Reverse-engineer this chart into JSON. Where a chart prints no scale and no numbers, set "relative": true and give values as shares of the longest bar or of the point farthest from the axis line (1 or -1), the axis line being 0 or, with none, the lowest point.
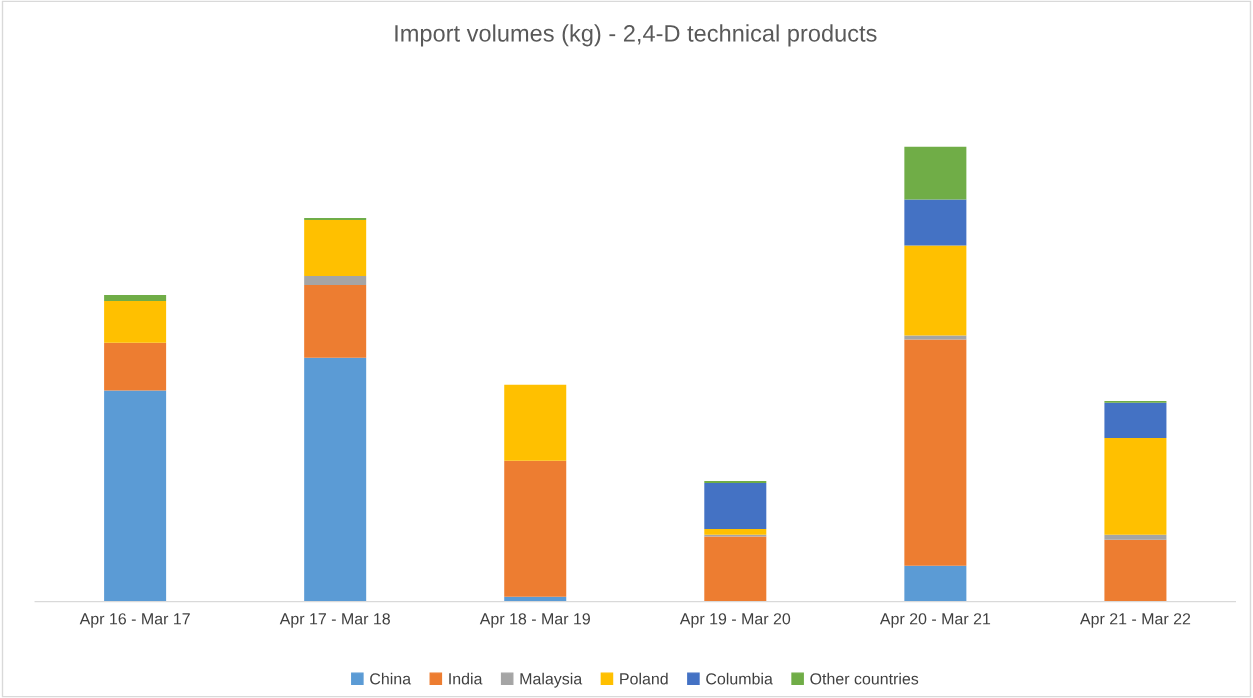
{
  "chart_data": {
    "type": "bar",
    "title": "Import volumes (kg) - 2,4-D technical products",
    "categories": [
      "Apr 16 - Mar 17",
      "Apr 17 - Mar 18",
      "Apr 18 - Mar 19",
      "Apr 19 - Mar 20",
      "Apr 20 - Mar 21",
      "Apr 21 - Mar 22"
    ],
    "stacked": true,
    "relative": true,
    "legend": "bottom",
    "series": [
      {
        "name": "China",
        "color": "#5b9bd5",
        "values": [
          0.464,
          0.536,
          0.011,
          0,
          0.079,
          0
        ]
      },
      {
        "name": "India",
        "color": "#ed7d31",
        "values": [
          0.105,
          0.16,
          0.299,
          0.143,
          0.497,
          0.136
        ]
      },
      {
        "name": "Malaysia",
        "color": "#a5a5a5",
        "values": [
          0,
          0.02,
          0,
          0.004,
          0.009,
          0.011
        ]
      },
      {
        "name": "Poland",
        "color": "#ffc000",
        "values": [
          0.092,
          0.123,
          0.167,
          0.013,
          0.198,
          0.213
        ]
      },
      {
        "name": "Columbia",
        "color": "#4472c4",
        "values": [
          0,
          0,
          0,
          0.101,
          0.101,
          0.077
        ]
      },
      {
        "name": "Other countries",
        "color": "#70ad47",
        "values": [
          0.013,
          0.004,
          0,
          0.004,
          0.116,
          0.004
        ]
      }
    ]
  }
}
